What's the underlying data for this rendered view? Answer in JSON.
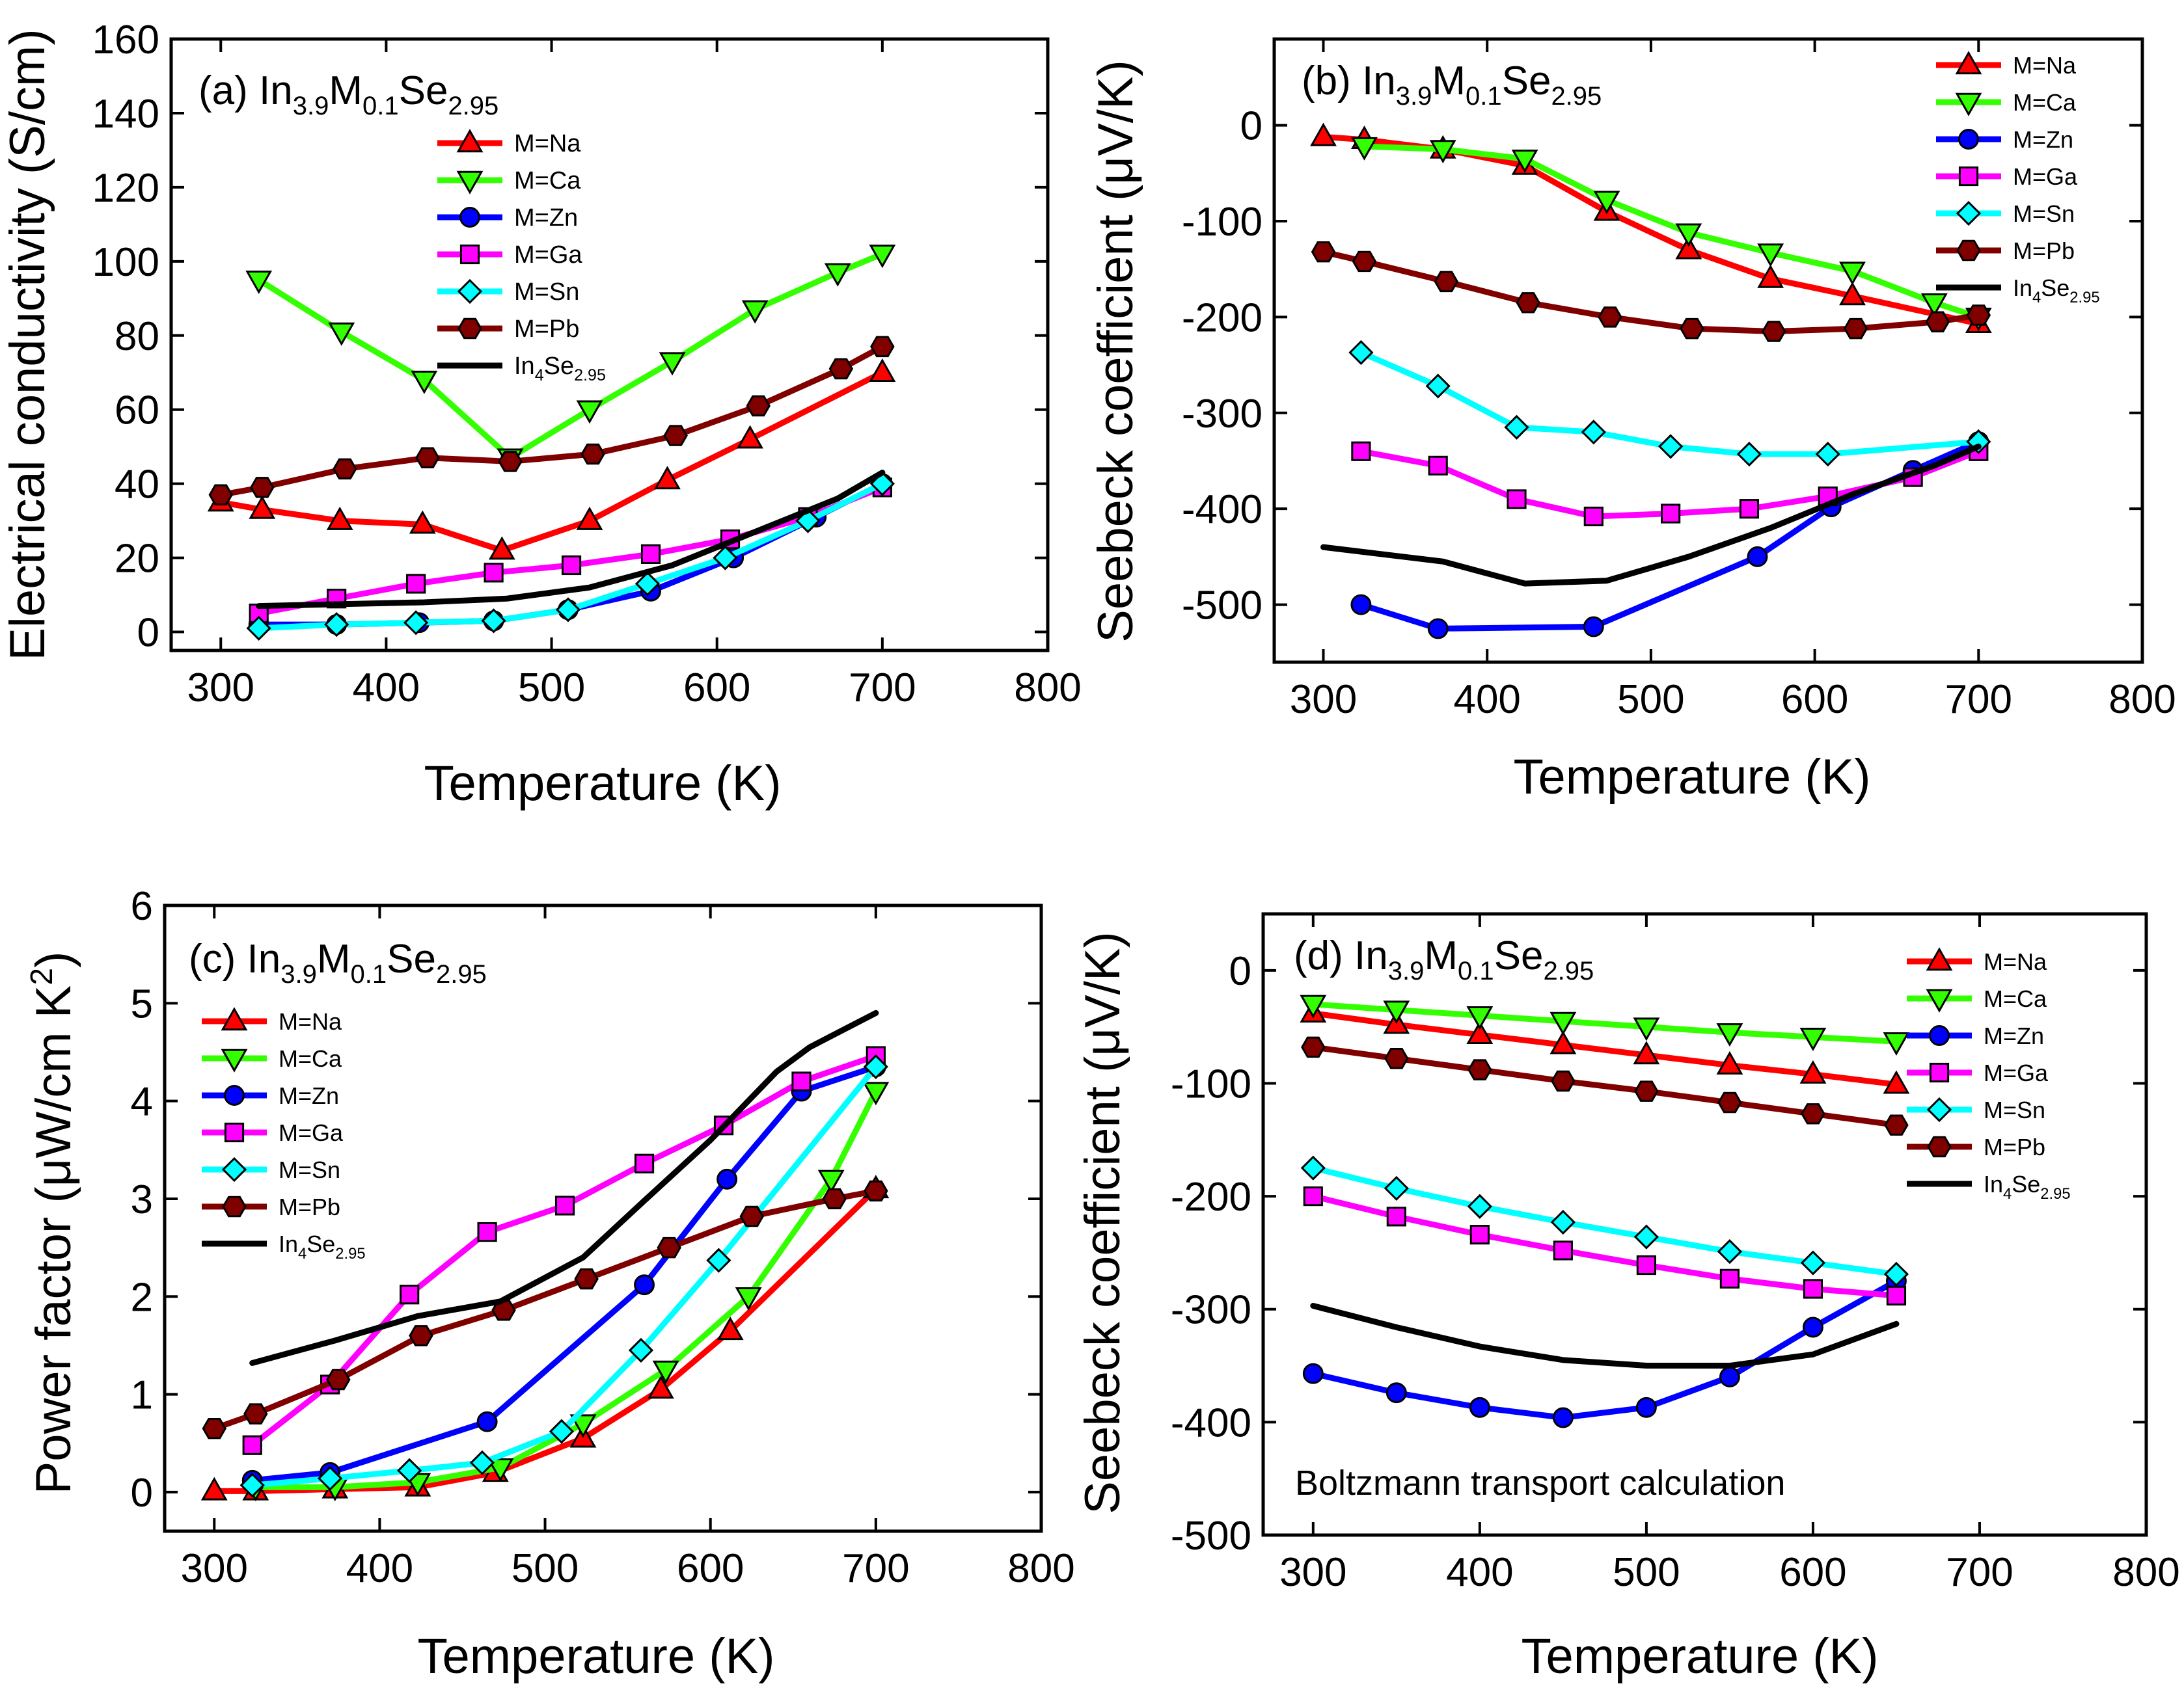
{
  "figure": {
    "colors": {
      "Na": "#ff0000",
      "Ca": "#33ff00",
      "Zn": "#0000ff",
      "Ga": "#ff00ff",
      "Sn": "#00ffff",
      "Pb": "#800000",
      "In4": "#000000",
      "Na_marker": "#ff0000",
      "Ca_marker": "#33ff00",
      "Zn_marker": "#0000ff",
      "Ga_marker": "#ff00ff",
      "Sn_marker": "#00ffff",
      "Pb_marker": "#800000"
    }
  },
  "chart_data": [
    {
      "id": "a",
      "type": "line",
      "title": "(a) In3.9M0.1Se2.95",
      "title_parts": {
        "prefix": "(a) In",
        "s1": "3.9",
        "m": "M",
        "s2": "0.1",
        "se": "Se",
        "s3": "2.95"
      },
      "xlabel": "Temperature (K)",
      "ylabel": "Electrical conductivity (S/cm)",
      "xlim": [
        270,
        800
      ],
      "ylim": [
        -5,
        160
      ],
      "xticks": [
        300,
        400,
        500,
        600,
        700,
        800
      ],
      "yticks": [
        0,
        20,
        40,
        60,
        80,
        100,
        120,
        140,
        160
      ],
      "legend_position": "top-center",
      "series": [
        {
          "key": "Na",
          "name": "M=Na",
          "marker": "triangle-up",
          "x": [
            300,
            325,
            372,
            422,
            470,
            523,
            570,
            620,
            700
          ],
          "y": [
            35,
            33,
            30,
            29,
            22,
            30,
            41,
            52,
            70
          ]
        },
        {
          "key": "Ca",
          "name": "M=Ca",
          "marker": "triangle-down",
          "x": [
            323,
            373,
            423,
            475,
            523,
            573,
            623,
            673,
            700
          ],
          "y": [
            95,
            81,
            68,
            47,
            60,
            73,
            87,
            97,
            102
          ]
        },
        {
          "key": "Zn",
          "name": "M=Zn",
          "marker": "circle",
          "x": [
            323,
            370,
            420,
            465,
            510,
            560,
            610,
            660,
            700
          ],
          "y": [
            2,
            2,
            2.5,
            3,
            6,
            11,
            20,
            31,
            40
          ]
        },
        {
          "key": "Ga",
          "name": "M=Ga",
          "marker": "square",
          "x": [
            323,
            370,
            418,
            465,
            512,
            560,
            608,
            655,
            700
          ],
          "y": [
            5,
            9,
            13,
            16,
            18,
            21,
            25,
            31,
            39
          ]
        },
        {
          "key": "Sn",
          "name": "M=Sn",
          "marker": "diamond",
          "x": [
            323,
            370,
            418,
            465,
            510,
            558,
            605,
            655,
            700
          ],
          "y": [
            1,
            2,
            2.5,
            3,
            6,
            13,
            20,
            30,
            40
          ]
        },
        {
          "key": "Pb",
          "name": "M=Pb",
          "marker": "hexagon",
          "x": [
            300,
            325,
            375,
            425,
            475,
            525,
            575,
            625,
            675,
            700
          ],
          "y": [
            37,
            39,
            44,
            47,
            46,
            48,
            53,
            61,
            71,
            77
          ]
        },
        {
          "key": "In4",
          "name": "In4Se2.95",
          "marker": "none",
          "x": [
            323,
            373,
            423,
            473,
            523,
            573,
            623,
            673,
            700
          ],
          "y": [
            7,
            7.5,
            8,
            9,
            12,
            18,
            27,
            36,
            43
          ]
        }
      ]
    },
    {
      "id": "b",
      "type": "line",
      "title": "(b) In3.9M0.1Se2.95",
      "title_parts": {
        "prefix": "(b) In",
        "s1": "3.9",
        "m": "M",
        "s2": "0.1",
        "se": "Se",
        "s3": "2.95"
      },
      "xlabel": "Temperature (K)",
      "ylabel": "Seebeck coefficient (μV/K)",
      "xlim": [
        270,
        800
      ],
      "ylim": [
        -560,
        90
      ],
      "xticks": [
        300,
        400,
        500,
        600,
        700,
        800
      ],
      "yticks": [
        0,
        -100,
        -200,
        -300,
        -400,
        -500
      ],
      "legend_position": "top-right",
      "series": [
        {
          "key": "Na",
          "name": "M=Na",
          "marker": "triangle-up",
          "x": [
            300,
            325,
            373,
            423,
            473,
            523,
            573,
            623,
            700
          ],
          "y": [
            -12,
            -15,
            -25,
            -42,
            -90,
            -130,
            -160,
            -178,
            -207
          ]
        },
        {
          "key": "Ca",
          "name": "M=Ca",
          "marker": "triangle-down",
          "x": [
            325,
            373,
            423,
            473,
            523,
            573,
            623,
            673,
            700
          ],
          "y": [
            -22,
            -25,
            -35,
            -78,
            -112,
            -133,
            -152,
            -185,
            -200
          ]
        },
        {
          "key": "Zn",
          "name": "M=Zn",
          "marker": "circle",
          "x": [
            323,
            370,
            465,
            565,
            610,
            660,
            700
          ],
          "y": [
            -500,
            -525,
            -523,
            -450,
            -398,
            -360,
            -330
          ]
        },
        {
          "key": "Ga",
          "name": "M=Ga",
          "marker": "square",
          "x": [
            323,
            370,
            418,
            465,
            512,
            560,
            608,
            660,
            700
          ],
          "y": [
            -340,
            -355,
            -390,
            -408,
            -405,
            -400,
            -387,
            -367,
            -340
          ]
        },
        {
          "key": "Sn",
          "name": "M=Sn",
          "marker": "diamond",
          "x": [
            323,
            370,
            418,
            465,
            512,
            560,
            608,
            700
          ],
          "y": [
            -237,
            -272,
            -315,
            -320,
            -335,
            -343,
            -343,
            -330
          ]
        },
        {
          "key": "Pb",
          "name": "M=Pb",
          "marker": "hexagon",
          "x": [
            300,
            325,
            375,
            425,
            475,
            525,
            575,
            625,
            675,
            700
          ],
          "y": [
            -132,
            -142,
            -163,
            -185,
            -200,
            -212,
            -215,
            -212,
            -205,
            -198
          ]
        },
        {
          "key": "In4",
          "name": "In4Se2.95",
          "marker": "none",
          "x": [
            300,
            373,
            423,
            473,
            523,
            573,
            623,
            673,
            700
          ],
          "y": [
            -440,
            -455,
            -478,
            -475,
            -450,
            -420,
            -385,
            -355,
            -335
          ]
        }
      ]
    },
    {
      "id": "c",
      "type": "line",
      "title": "(c) In3.9M0.1Se2.95",
      "title_parts": {
        "prefix": "(c) In",
        "s1": "3.9",
        "m": "M",
        "s2": "0.1",
        "se": "Se",
        "s3": "2.95"
      },
      "xlabel": "Temperature (K)",
      "ylabel": "Power factor (μW/cm K²)",
      "xlim": [
        270,
        800
      ],
      "ylim": [
        -0.4,
        6
      ],
      "xticks": [
        300,
        400,
        500,
        600,
        700,
        800
      ],
      "yticks": [
        0,
        1,
        2,
        3,
        4,
        5,
        6
      ],
      "legend_position": "left",
      "series": [
        {
          "key": "Na",
          "name": "M=Na",
          "marker": "triangle-up",
          "x": [
            300,
            325,
            373,
            423,
            470,
            523,
            570,
            612,
            700
          ],
          "y": [
            0.01,
            0.01,
            0.03,
            0.05,
            0.2,
            0.55,
            1.05,
            1.65,
            3.1
          ]
        },
        {
          "key": "Ca",
          "name": "M=Ca",
          "marker": "triangle-down",
          "x": [
            325,
            373,
            423,
            473,
            523,
            573,
            623,
            673,
            700
          ],
          "y": [
            0.05,
            0.05,
            0.1,
            0.25,
            0.7,
            1.25,
            2.0,
            3.2,
            4.1
          ]
        },
        {
          "key": "Zn",
          "name": "M=Zn",
          "marker": "circle",
          "x": [
            323,
            370,
            465,
            560,
            610,
            655,
            700
          ],
          "y": [
            0.12,
            0.2,
            0.72,
            2.12,
            3.2,
            4.1,
            4.35
          ]
        },
        {
          "key": "Ga",
          "name": "M=Ga",
          "marker": "square",
          "x": [
            323,
            370,
            418,
            465,
            512,
            560,
            608,
            655,
            700
          ],
          "y": [
            0.48,
            1.1,
            2.02,
            2.66,
            2.93,
            3.36,
            3.75,
            4.2,
            4.46
          ]
        },
        {
          "key": "Sn",
          "name": "M=Sn",
          "marker": "diamond",
          "x": [
            323,
            370,
            418,
            462,
            510,
            558,
            605,
            700
          ],
          "y": [
            0.07,
            0.14,
            0.22,
            0.3,
            0.62,
            1.45,
            2.37,
            4.35
          ]
        },
        {
          "key": "Pb",
          "name": "M=Pb",
          "marker": "hexagon",
          "x": [
            300,
            325,
            375,
            425,
            475,
            525,
            575,
            625,
            675,
            700
          ],
          "y": [
            0.65,
            0.8,
            1.15,
            1.6,
            1.86,
            2.18,
            2.5,
            2.82,
            3.0,
            3.08
          ]
        },
        {
          "key": "In4",
          "name": "In4Se2.95",
          "marker": "none",
          "x": [
            323,
            373,
            423,
            473,
            523,
            560,
            600,
            640,
            660,
            700
          ],
          "y": [
            1.32,
            1.55,
            1.8,
            1.95,
            2.4,
            2.98,
            3.6,
            4.3,
            4.55,
            4.9
          ]
        }
      ]
    },
    {
      "id": "d",
      "type": "line",
      "title": "(d) In3.9M0.1Se2.95",
      "title_parts": {
        "prefix": "(d) In",
        "s1": "3.9",
        "m": "M",
        "s2": "0.1",
        "se": "Se",
        "s3": "2.95"
      },
      "annotation": "Boltzmann transport calculation",
      "xlabel": "Temperature (K)",
      "ylabel": "Seebeck coefficient (μV/K)",
      "xlim": [
        270,
        800
      ],
      "ylim": [
        -500,
        50
      ],
      "xticks": [
        300,
        400,
        500,
        600,
        700,
        800
      ],
      "yticks": [
        0,
        -100,
        -200,
        -300,
        -400,
        -500
      ],
      "legend_position": "top-right",
      "series": [
        {
          "key": "Na",
          "name": "M=Na",
          "marker": "triangle-up",
          "x": [
            300,
            350,
            400,
            450,
            500,
            550,
            600,
            650
          ],
          "y": [
            -38,
            -48,
            -57,
            -66,
            -75,
            -84,
            -92,
            -101
          ]
        },
        {
          "key": "Ca",
          "name": "M=Ca",
          "marker": "triangle-down",
          "x": [
            300,
            350,
            400,
            450,
            500,
            550,
            600,
            650
          ],
          "y": [
            -30,
            -35,
            -40,
            -45,
            -50,
            -55,
            -59,
            -63
          ]
        },
        {
          "key": "Zn",
          "name": "M=Zn",
          "marker": "circle",
          "x": [
            300,
            350,
            400,
            450,
            500,
            550,
            600,
            650
          ],
          "y": [
            -357,
            -374,
            -387,
            -396,
            -387,
            -360,
            -316,
            -275
          ]
        },
        {
          "key": "Ga",
          "name": "M=Ga",
          "marker": "square",
          "x": [
            300,
            350,
            400,
            450,
            500,
            550,
            600,
            650
          ],
          "y": [
            -200,
            -218,
            -234,
            -248,
            -261,
            -273,
            -282,
            -288
          ]
        },
        {
          "key": "Sn",
          "name": "M=Sn",
          "marker": "diamond",
          "x": [
            300,
            350,
            400,
            450,
            500,
            550,
            600,
            650
          ],
          "y": [
            -175,
            -193,
            -209,
            -223,
            -236,
            -249,
            -259,
            -269
          ]
        },
        {
          "key": "Pb",
          "name": "M=Pb",
          "marker": "hexagon",
          "x": [
            300,
            350,
            400,
            450,
            500,
            550,
            600,
            650
          ],
          "y": [
            -68,
            -78,
            -88,
            -98,
            -107,
            -117,
            -127,
            -137
          ]
        },
        {
          "key": "In4",
          "name": "In4Se2.95",
          "marker": "none",
          "x": [
            300,
            350,
            400,
            450,
            500,
            550,
            600,
            650
          ],
          "y": [
            -297,
            -316,
            -333,
            -345,
            -350,
            -350,
            -340,
            -313
          ]
        }
      ]
    }
  ]
}
